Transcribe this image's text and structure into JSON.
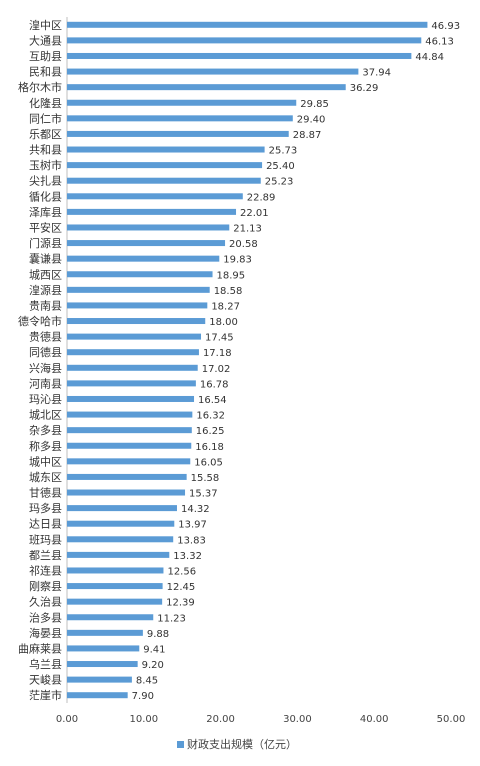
{
  "chart_data": {
    "type": "bar",
    "orientation": "horizontal",
    "categories": [
      "湟中区",
      "大通县",
      "互助县",
      "民和县",
      "格尔木市",
      "化隆县",
      "同仁市",
      "乐都区",
      "共和县",
      "玉树市",
      "尖扎县",
      "循化县",
      "泽库县",
      "平安区",
      "门源县",
      "囊谦县",
      "城西区",
      "湟源县",
      "贵南县",
      "德令哈市",
      "贵德县",
      "同德县",
      "兴海县",
      "河南县",
      "玛沁县",
      "城北区",
      "杂多县",
      "称多县",
      "城中区",
      "城东区",
      "甘德县",
      "玛多县",
      "达日县",
      "班玛县",
      "都兰县",
      "祁连县",
      "刚察县",
      "久治县",
      "治多县",
      "海晏县",
      "曲麻莱县",
      "乌兰县",
      "天峻县",
      "茫崖市"
    ],
    "series": [
      {
        "name": "财政支出规模（亿元）",
        "color": "#5b9bd5",
        "values": [
          46.93,
          46.13,
          44.84,
          37.94,
          36.29,
          29.85,
          29.4,
          28.87,
          25.73,
          25.4,
          25.23,
          22.89,
          22.01,
          21.13,
          20.58,
          19.83,
          18.95,
          18.58,
          18.27,
          18.0,
          17.45,
          17.18,
          17.02,
          16.78,
          16.54,
          16.32,
          16.25,
          16.18,
          16.05,
          15.58,
          15.37,
          14.32,
          13.97,
          13.83,
          13.32,
          12.56,
          12.45,
          12.39,
          11.23,
          9.88,
          9.41,
          9.2,
          8.45,
          7.9
        ]
      }
    ],
    "value_labels": [
      "46.93",
      "46.13",
      "44.84",
      "37.94",
      "36.29",
      "29.85",
      "29.40",
      "28.87",
      "25.73",
      "25.40",
      "25.23",
      "22.89",
      "22.01",
      "21.13",
      "20.58",
      "19.83",
      "18.95",
      "18.58",
      "18.27",
      "18.00",
      "17.45",
      "17.18",
      "17.02",
      "16.78",
      "16.54",
      "16.32",
      "16.25",
      "16.18",
      "16.05",
      "15.58",
      "15.37",
      "14.32",
      "13.97",
      "13.83",
      "13.32",
      "12.56",
      "12.45",
      "12.39",
      "11.23",
      "9.88",
      "9.41",
      "9.20",
      "8.45",
      "7.90"
    ],
    "xlim": [
      0,
      50
    ],
    "xticks": [
      0,
      10,
      20,
      30,
      40,
      50
    ],
    "xtick_labels": [
      "0.00",
      "10.00",
      "20.00",
      "30.00",
      "40.00",
      "50.00"
    ],
    "grid": false,
    "legend_position": "bottom"
  }
}
